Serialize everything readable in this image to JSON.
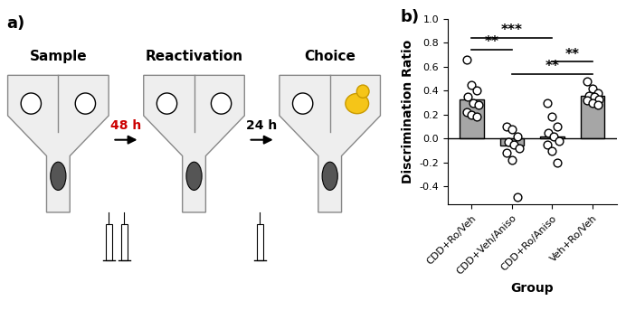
{
  "diagram": {
    "panel_label": "a)",
    "stages": [
      {
        "label": "Sample",
        "novel_object": false
      },
      {
        "label": "Reactivation",
        "novel_object": false
      },
      {
        "label": "Choice",
        "novel_object": true
      }
    ],
    "intervals": [
      {
        "label": "48 h",
        "color": "#cc0000",
        "injections": 2
      },
      {
        "label": "24 h",
        "color": "#000000",
        "injections": 1
      }
    ]
  },
  "chart_data": {
    "panel_label": "b)",
    "type": "bar",
    "x_label": "Group",
    "y_label": "Discrimination Ratio",
    "categories": [
      "CDD+Ro/Veh",
      "CDD+Veh/Aniso",
      "CDD+Ro/Aniso",
      "Veh+Ro/Veh"
    ],
    "values": [
      0.33,
      -0.06,
      0.02,
      0.36
    ],
    "points": [
      [
        0.66,
        0.45,
        0.4,
        0.35,
        0.3,
        0.28,
        0.22,
        0.2,
        0.18
      ],
      [
        0.1,
        0.08,
        0.02,
        -0.03,
        -0.05,
        -0.08,
        -0.12,
        -0.18,
        -0.49
      ],
      [
        0.3,
        0.18,
        0.1,
        0.05,
        0.02,
        -0.02,
        -0.05,
        -0.1,
        -0.2
      ],
      [
        0.48,
        0.42,
        0.38,
        0.36,
        0.35,
        0.33,
        0.32,
        0.3,
        0.28
      ]
    ],
    "color": "#a6a6a6",
    "ylim": [
      -0.55,
      1.0
    ],
    "yticks": [
      -0.4,
      -0.2,
      0.0,
      0.2,
      0.4,
      0.6,
      0.8,
      1.0
    ],
    "comparisons": [
      {
        "groups": [
          "CDD+Ro/Veh",
          "CDD+Ro/Aniso"
        ],
        "label": "***"
      },
      {
        "groups": [
          "CDD+Ro/Veh",
          "CDD+Veh/Aniso"
        ],
        "label": "**"
      },
      {
        "groups": [
          "CDD+Ro/Aniso",
          "Veh+Ro/Veh"
        ],
        "label": "**"
      },
      {
        "groups": [
          "CDD+Veh/Aniso",
          "Veh+Ro/Veh"
        ],
        "label": "**"
      }
    ]
  }
}
